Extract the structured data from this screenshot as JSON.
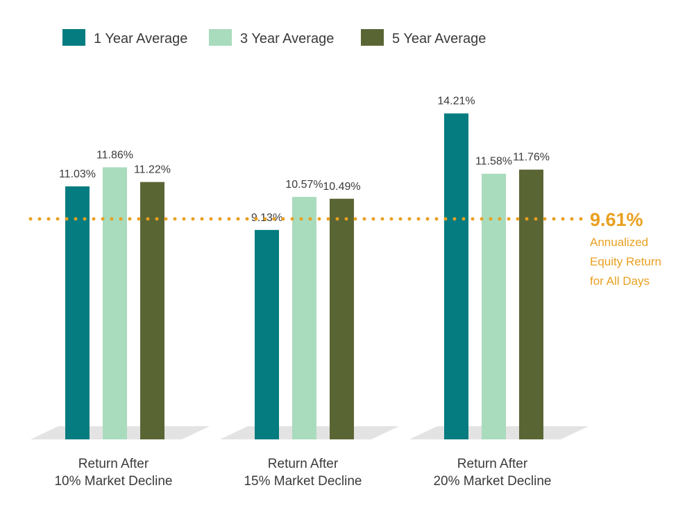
{
  "chart_data": {
    "type": "bar",
    "categories": [
      [
        "Return After",
        "10% Market Decline"
      ],
      [
        "Return After",
        "15% Market Decline"
      ],
      [
        "Return After",
        "20% Market Decline"
      ]
    ],
    "series": [
      {
        "name": "1 Year Average",
        "color": "#047c80",
        "values": [
          11.03,
          9.13,
          14.21
        ],
        "labels": [
          "11.03%",
          "9.13%",
          "14.21%"
        ]
      },
      {
        "name": "3 Year Average",
        "color": "#a9dbbd",
        "values": [
          11.86,
          10.57,
          11.58
        ],
        "labels": [
          "11.86%",
          "10.57%",
          "11.58%"
        ]
      },
      {
        "name": "5 Year Average",
        "color": "#5a6534",
        "values": [
          11.22,
          10.49,
          11.76
        ],
        "labels": [
          "11.22%",
          "10.49%",
          "11.76%"
        ]
      }
    ],
    "reference_line": {
      "value": 9.61,
      "value_label": "9.61%",
      "text_lines": [
        "Annualized",
        "Equity Return",
        "for All Days"
      ],
      "color": "#e9a020"
    },
    "legend_position": "top-left",
    "grid": false
  }
}
